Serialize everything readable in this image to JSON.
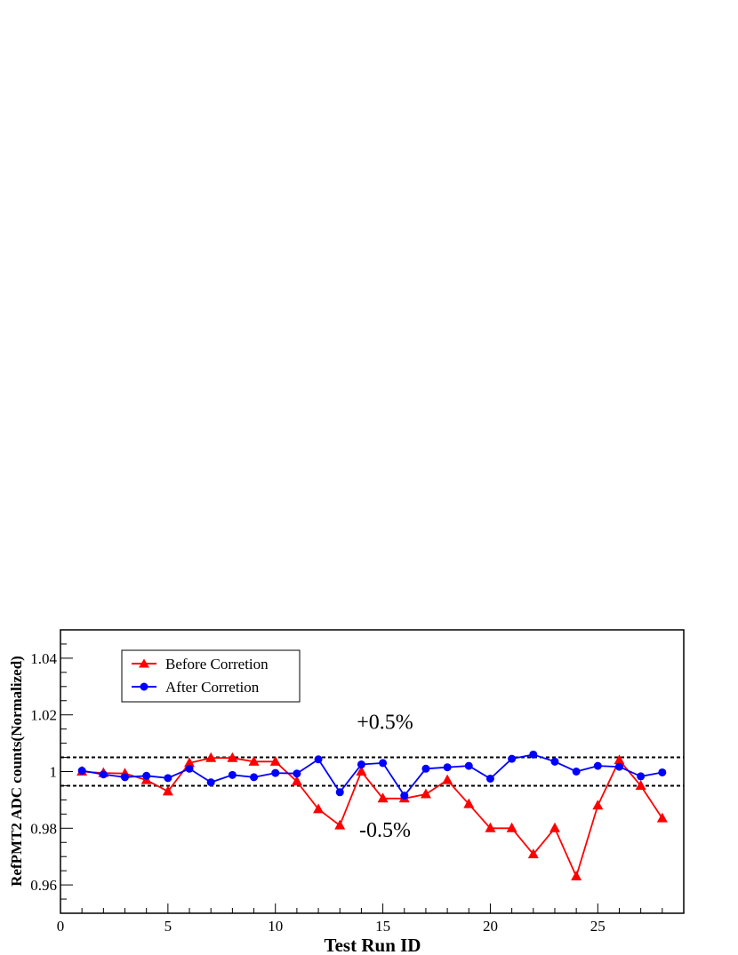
{
  "chart_data": {
    "type": "line",
    "title": "",
    "xlabel": "Test Run ID",
    "ylabel": "RefPMT2 ADC counts(Normalized)",
    "xlim": [
      0,
      29
    ],
    "ylim": [
      0.95,
      1.05
    ],
    "xticks": [
      0,
      5,
      10,
      15,
      20,
      25
    ],
    "yticks": [
      0.96,
      0.98,
      1.0,
      1.02,
      1.04
    ],
    "ytick_labels": [
      "0.96",
      "0.98",
      "1",
      "1.02",
      "1.04"
    ],
    "grid": false,
    "legend_position": "top-left",
    "x": [
      1,
      2,
      3,
      4,
      5,
      6,
      7,
      8,
      9,
      10,
      11,
      12,
      13,
      14,
      15,
      16,
      17,
      18,
      19,
      20,
      21,
      22,
      23,
      24,
      25,
      26,
      27,
      28
    ],
    "series": [
      {
        "name": "Before Corretion",
        "color": "#ff0000",
        "marker": "triangle",
        "values": [
          1.0,
          0.9995,
          0.9993,
          0.997,
          0.993,
          1.003,
          1.0048,
          1.0048,
          1.0035,
          1.0035,
          0.9965,
          0.9867,
          0.981,
          1.0,
          0.9905,
          0.9905,
          0.992,
          0.997,
          0.9885,
          0.98,
          0.98,
          0.9708,
          0.98,
          0.963,
          0.988,
          1.004,
          0.995,
          0.9835
        ]
      },
      {
        "name": "After Corretion",
        "color": "#0000ff",
        "marker": "circle",
        "values": [
          1.0003,
          0.999,
          0.998,
          0.9985,
          0.9977,
          1.001,
          0.9962,
          0.9988,
          0.998,
          0.9995,
          0.9993,
          1.0043,
          0.9927,
          1.0025,
          1.003,
          0.9915,
          1.001,
          1.0015,
          1.002,
          0.9975,
          1.0045,
          1.006,
          1.0035,
          1.0,
          1.002,
          1.0017,
          0.9983,
          0.9997
        ]
      }
    ],
    "reference_lines": [
      {
        "y": 1.005,
        "style": "dotted",
        "color": "#000000"
      },
      {
        "y": 0.995,
        "style": "dotted",
        "color": "#000000"
      }
    ],
    "annotations": [
      {
        "text": "+0.5%",
        "x": 15.1,
        "y": 1.0175
      },
      {
        "text": "-0.5%",
        "x": 15.1,
        "y": 0.9795
      }
    ]
  }
}
